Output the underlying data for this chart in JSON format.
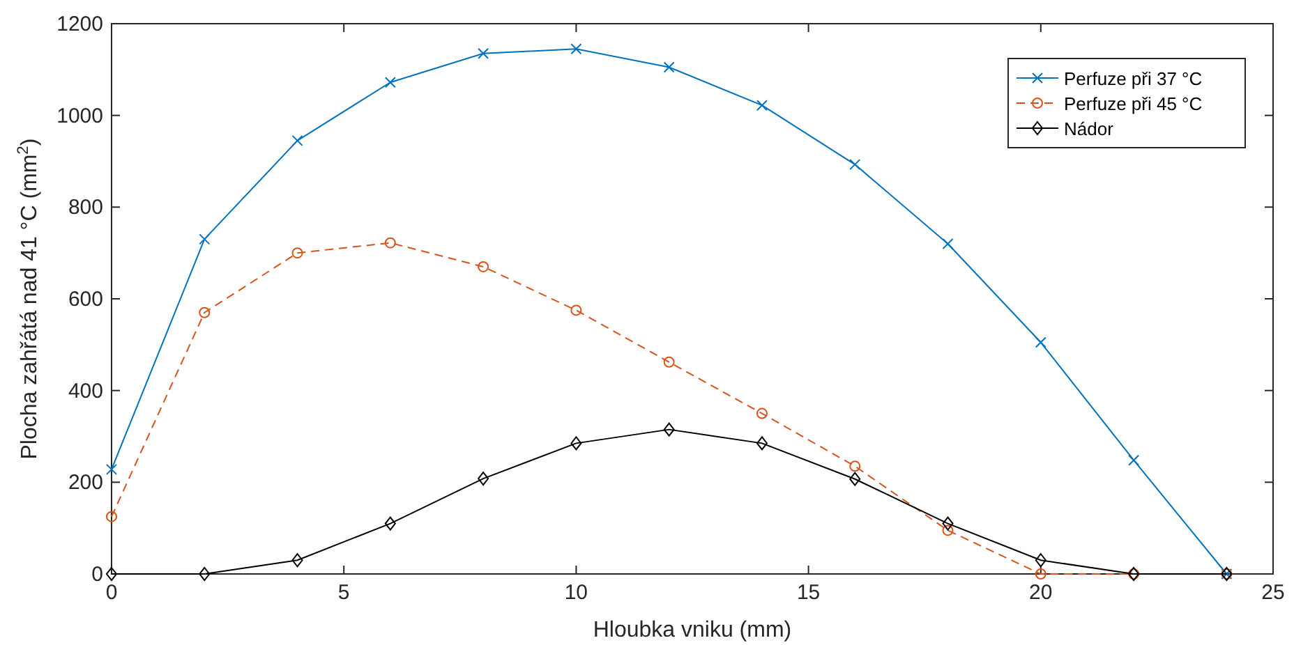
{
  "chart_data": {
    "type": "line",
    "xlabel": "Hloubka vniku (mm)",
    "ylabel": "Plocha zahřátá nad 41 °C (mm$^{2}$)",
    "x": [
      0,
      2,
      4,
      6,
      8,
      10,
      12,
      14,
      16,
      18,
      20,
      22,
      24
    ],
    "xlim": [
      0,
      25
    ],
    "xticks": [
      0,
      5,
      10,
      15,
      20,
      25
    ],
    "ylim": [
      0,
      1200
    ],
    "yticks": [
      0,
      200,
      400,
      600,
      800,
      1000,
      1200
    ],
    "legend": "top right",
    "grid": false,
    "series": [
      {
        "name": "Perfuze při 37 °C",
        "color": "#0072bd",
        "marker": "cross",
        "line_style": "solid",
        "values": [
          228,
          730,
          945,
          1072,
          1135,
          1145,
          1105,
          1022,
          893,
          720,
          505,
          248,
          0
        ]
      },
      {
        "name": "Perfuze při 45 °C",
        "color": "#d95319",
        "marker": "circle",
        "line_style": "dashed",
        "values": [
          125,
          570,
          700,
          722,
          670,
          575,
          462,
          350,
          235,
          95,
          0,
          0,
          0
        ]
      },
      {
        "name": "Nádor",
        "color": "#000000",
        "marker": "diamond",
        "line_style": "solid",
        "values": [
          0,
          0,
          30,
          110,
          208,
          285,
          315,
          285,
          207,
          110,
          30,
          0,
          0
        ]
      }
    ]
  }
}
